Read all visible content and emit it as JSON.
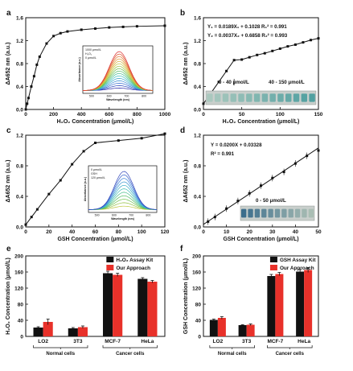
{
  "chart_data": [
    {
      "panel": "a",
      "type": "line",
      "xlabel": "H₂O₂ Concentration (μmol/L)",
      "ylabel": "ΔA652 nm (a.u.)",
      "xlim": [
        0,
        1000
      ],
      "ylim": [
        0,
        1.6
      ],
      "xticks": [
        0,
        200,
        400,
        600,
        800,
        1000
      ],
      "yticks": [
        0,
        0.4,
        0.8,
        1.2,
        1.6
      ],
      "x": [
        0,
        10,
        20,
        40,
        60,
        80,
        100,
        150,
        200,
        250,
        300,
        400,
        500,
        600,
        700,
        800,
        1000
      ],
      "y": [
        0.0,
        0.1,
        0.2,
        0.4,
        0.58,
        0.78,
        0.92,
        1.15,
        1.28,
        1.33,
        1.36,
        1.39,
        1.41,
        1.43,
        1.44,
        1.45,
        1.46
      ],
      "inset": {
        "xlabel": "Wavelength (nm)",
        "ylabel": "Absorbance (a.u.)",
        "xticks": [
          "500",
          "600",
          "700",
          "800"
        ],
        "top_label": "1000 μmol/L",
        "species": "H₂O₂",
        "bottom_label": "0 μmol/L",
        "curve_count": 16
      }
    },
    {
      "panel": "b",
      "type": "line",
      "xlabel": "H₂O₂ Concentration (μmol/L)",
      "ylabel": "ΔA652 nm (a.u.)",
      "xlim": [
        0,
        150
      ],
      "ylim": [
        0,
        1.6
      ],
      "xticks": [
        0,
        50,
        100,
        150
      ],
      "yticks": [
        0,
        0.4,
        0.8,
        1.2,
        1.6
      ],
      "x": [
        0,
        10,
        20,
        30,
        40,
        50,
        60,
        70,
        80,
        90,
        100,
        110,
        120,
        130,
        140,
        150
      ],
      "y": [
        0.1,
        0.29,
        0.48,
        0.67,
        0.86,
        0.87,
        0.91,
        0.95,
        0.98,
        1.02,
        1.06,
        1.1,
        1.13,
        1.17,
        1.21,
        1.24
      ],
      "equations": [
        "Y₁ = 0.0189X₁ + 0.1028  R₁² = 0.991",
        "Y₂ = 0.0037X₂ + 0.6858  R₂² = 0.993"
      ],
      "range_labels": [
        "0 - 40 μmol/L",
        "40 - 150 μmol/L"
      ]
    },
    {
      "panel": "c",
      "type": "line",
      "xlabel": "GSH Concentration (μmol/L)",
      "ylabel": "ΔA652 nm (a.u.)",
      "xlim": [
        0,
        120
      ],
      "ylim": [
        0,
        1.2
      ],
      "xticks": [
        0,
        20,
        40,
        60,
        80,
        100,
        120
      ],
      "yticks": [
        0,
        0.4,
        0.8,
        1.2
      ],
      "x": [
        0,
        5,
        10,
        20,
        30,
        40,
        50,
        60,
        80,
        100,
        120
      ],
      "y": [
        0.03,
        0.13,
        0.23,
        0.43,
        0.61,
        0.82,
        0.99,
        1.1,
        1.13,
        1.16,
        1.22
      ],
      "inset": {
        "xlabel": "Wavelength (nm)",
        "ylabel": "Absorbance (a.u.)",
        "xticks": [
          "500",
          "600",
          "700",
          "800"
        ],
        "top_label": "0 μmol/L",
        "species": "GSH",
        "bottom_label": "120 μmol/L",
        "curve_count": 11
      }
    },
    {
      "panel": "d",
      "type": "scatter",
      "xlabel": "GSH Concentration (μmol/L)",
      "ylabel": "ΔA652 nm (a.u.)",
      "xlim": [
        0,
        50
      ],
      "ylim": [
        0,
        1.2
      ],
      "xticks": [
        0,
        10,
        20,
        30,
        40,
        50
      ],
      "yticks": [
        0,
        0.4,
        0.8,
        1.2
      ],
      "x": [
        2,
        5,
        10,
        15,
        20,
        25,
        30,
        35,
        40,
        45,
        50
      ],
      "y": [
        0.07,
        0.13,
        0.24,
        0.34,
        0.44,
        0.54,
        0.64,
        0.72,
        0.83,
        0.93,
        1.0
      ],
      "fit": {
        "slope": 0.02,
        "intercept": 0.03328
      },
      "equations": [
        "Y = 0.0200X + 0.03328",
        "R² = 0.991"
      ],
      "range_labels": [
        "0 - 50 μmol/L"
      ]
    },
    {
      "panel": "e",
      "type": "bar",
      "ylabel": "H₂O₂ Concentration (μmol/L)",
      "ylim": [
        0,
        200
      ],
      "yticks": [
        0,
        40,
        80,
        120,
        160,
        200
      ],
      "categories": [
        "LO2",
        "3T3",
        "MCF-7",
        "HeLa"
      ],
      "series": [
        {
          "name": "H₂O₂ Assay Kit",
          "values": [
            22,
            20,
            157,
            143
          ],
          "errors": [
            2,
            2,
            5,
            3
          ],
          "color": "#111111"
        },
        {
          "name": "Our Approach",
          "values": [
            36,
            23,
            153,
            136
          ],
          "errors": [
            7,
            3,
            4,
            3
          ],
          "color": "#e8312a"
        }
      ],
      "groups": [
        "Normal cells",
        "Cancer cells"
      ]
    },
    {
      "panel": "f",
      "type": "bar",
      "ylabel": "GSH Concentration (μmol/L)",
      "ylim": [
        0,
        200
      ],
      "yticks": [
        0,
        40,
        80,
        120,
        160,
        200
      ],
      "categories": [
        "LO2",
        "3T3",
        "MCF-7",
        "HeLa"
      ],
      "series": [
        {
          "name": "GSH Assay Kit",
          "values": [
            41,
            28,
            150,
            161
          ],
          "errors": [
            2,
            1,
            4,
            5
          ],
          "color": "#111111"
        },
        {
          "name": "Our Approach",
          "values": [
            46,
            29,
            155,
            165
          ],
          "errors": [
            3,
            2,
            4,
            6
          ],
          "color": "#e8312a"
        }
      ],
      "groups": [
        "Normal cells",
        "Cancer cells"
      ]
    }
  ]
}
